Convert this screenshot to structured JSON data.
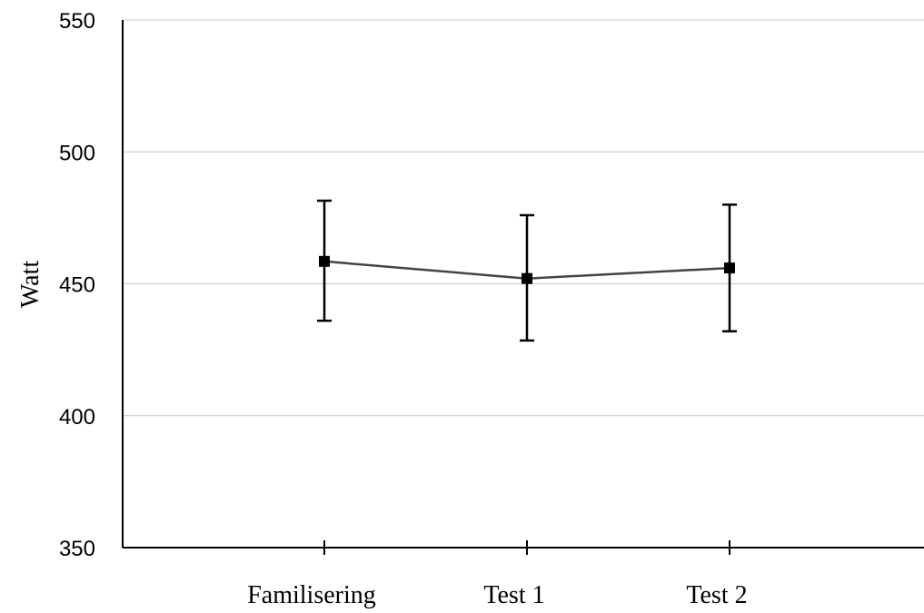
{
  "chart_data": {
    "type": "line",
    "title": "",
    "xlabel": "",
    "ylabel": "Watt",
    "ylim": [
      350,
      550
    ],
    "yticks": [
      350,
      400,
      450,
      500,
      550
    ],
    "categories": [
      "Familisering",
      "Test 1",
      "Test 2"
    ],
    "series": [
      {
        "values": [
          458.5,
          452,
          456
        ],
        "error_low": [
          436,
          428.5,
          432
        ],
        "error_high": [
          481.5,
          476,
          480
        ],
        "marker": "square",
        "color": "#444444"
      }
    ],
    "grid": true,
    "legend": "none"
  }
}
